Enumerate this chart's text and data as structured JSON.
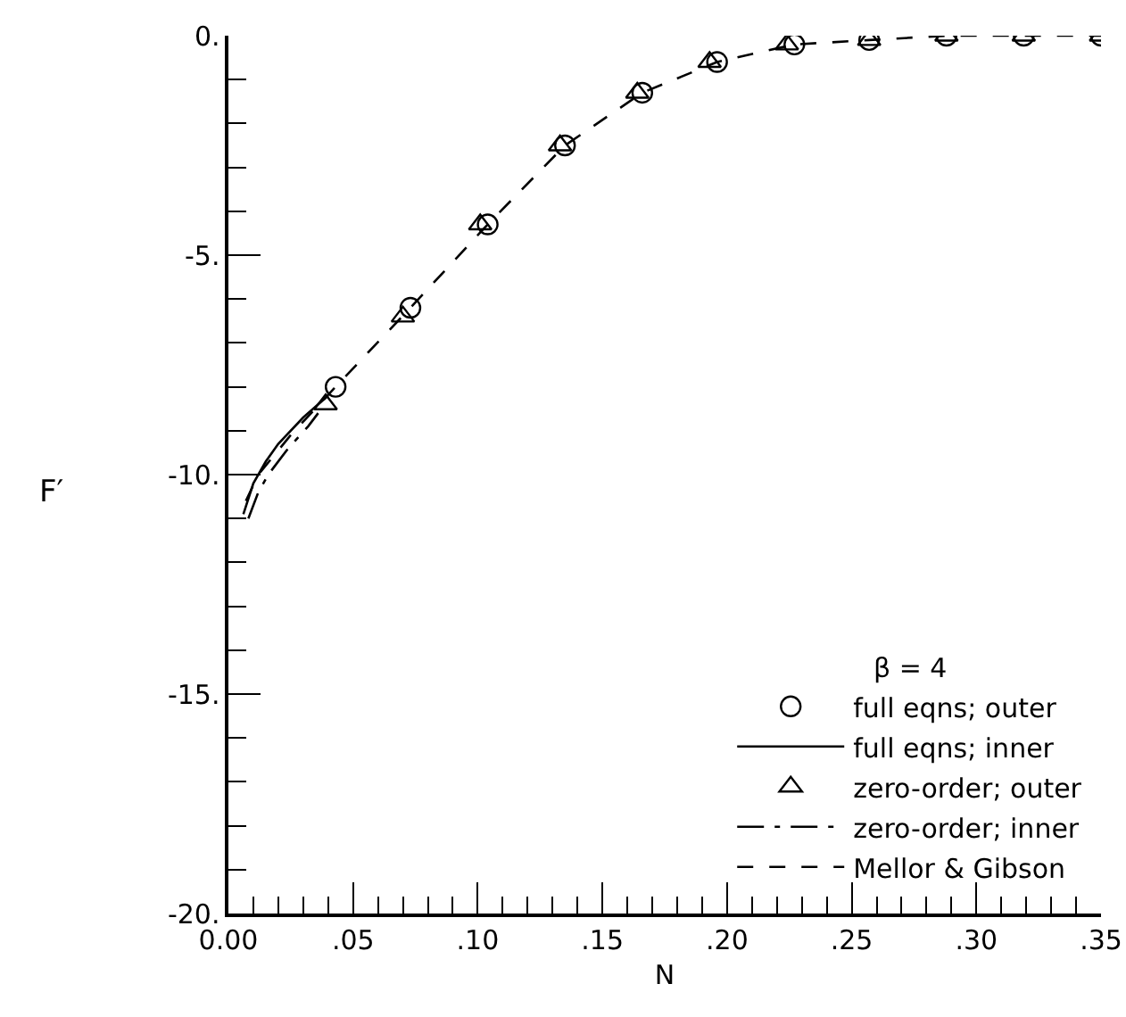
{
  "chart_data": {
    "type": "line",
    "xlabel": "N",
    "ylabel": "F′",
    "legend_title": "β = 4",
    "legend": "bottom right",
    "grid": false,
    "xlim": [
      0,
      0.35
    ],
    "ylim": [
      -20,
      0
    ],
    "xticks": [
      {
        "value": 0,
        "label": "0.00"
      },
      {
        "value": 0.01,
        "label": null
      },
      {
        "value": 0.02,
        "label": null
      },
      {
        "value": 0.03,
        "label": null
      },
      {
        "value": 0.04,
        "label": null
      },
      {
        "value": 0.05,
        "label": ".05"
      },
      {
        "value": 0.06,
        "label": null
      },
      {
        "value": 0.07,
        "label": null
      },
      {
        "value": 0.08,
        "label": null
      },
      {
        "value": 0.09,
        "label": null
      },
      {
        "value": 0.1,
        "label": ".10"
      },
      {
        "value": 0.11,
        "label": null
      },
      {
        "value": 0.12,
        "label": null
      },
      {
        "value": 0.13,
        "label": null
      },
      {
        "value": 0.14,
        "label": null
      },
      {
        "value": 0.15,
        "label": ".15"
      },
      {
        "value": 0.16,
        "label": null
      },
      {
        "value": 0.17,
        "label": null
      },
      {
        "value": 0.18,
        "label": null
      },
      {
        "value": 0.19,
        "label": null
      },
      {
        "value": 0.2,
        "label": ".20"
      },
      {
        "value": 0.21,
        "label": null
      },
      {
        "value": 0.22,
        "label": null
      },
      {
        "value": 0.23,
        "label": null
      },
      {
        "value": 0.24,
        "label": null
      },
      {
        "value": 0.25,
        "label": ".25"
      },
      {
        "value": 0.26,
        "label": null
      },
      {
        "value": 0.27,
        "label": null
      },
      {
        "value": 0.28,
        "label": null
      },
      {
        "value": 0.29,
        "label": null
      },
      {
        "value": 0.3,
        "label": ".30"
      },
      {
        "value": 0.31,
        "label": null
      },
      {
        "value": 0.32,
        "label": null
      },
      {
        "value": 0.33,
        "label": null
      },
      {
        "value": 0.34,
        "label": null
      },
      {
        "value": 0.35,
        "label": ".35"
      }
    ],
    "yticks": [
      {
        "value": -20,
        "label": "-20."
      },
      {
        "value": -19,
        "label": null
      },
      {
        "value": -18,
        "label": null
      },
      {
        "value": -17,
        "label": null
      },
      {
        "value": -16,
        "label": null
      },
      {
        "value": -15,
        "label": "-15."
      },
      {
        "value": -14,
        "label": null
      },
      {
        "value": -13,
        "label": null
      },
      {
        "value": -12,
        "label": null
      },
      {
        "value": -11,
        "label": null
      },
      {
        "value": -10,
        "label": "-10."
      },
      {
        "value": -9,
        "label": null
      },
      {
        "value": -8,
        "label": null
      },
      {
        "value": -7,
        "label": null
      },
      {
        "value": -6,
        "label": null
      },
      {
        "value": -5,
        "label": "-5."
      },
      {
        "value": -4,
        "label": null
      },
      {
        "value": -3,
        "label": null
      },
      {
        "value": -2,
        "label": null
      },
      {
        "value": -1,
        "label": null
      },
      {
        "value": 0,
        "label": "0."
      }
    ],
    "series": [
      {
        "name": "full eqns; outer",
        "type": "scatter",
        "marker": "circle",
        "color": "#000000",
        "x": [
          0.043,
          0.073,
          0.104,
          0.135,
          0.166,
          0.196,
          0.227,
          0.257,
          0.288,
          0.319,
          0.35
        ],
        "values": [
          -8.0,
          -6.2,
          -4.3,
          -2.5,
          -1.3,
          -0.6,
          -0.2,
          -0.1,
          0,
          0,
          0
        ]
      },
      {
        "name": "full eqns; inner",
        "line_style": "solid",
        "color": "#000000",
        "x": [
          0.006,
          0.01,
          0.015,
          0.02,
          0.03,
          0.04
        ],
        "values": [
          -10.9,
          -10.2,
          -9.7,
          -9.3,
          -8.7,
          -8.2
        ]
      },
      {
        "name": "zero-order; outer",
        "type": "scatter",
        "marker": "triangle",
        "color": "#000000",
        "x": [
          0.039,
          0.07,
          0.101,
          0.133,
          0.164,
          0.193,
          0.224,
          0.257,
          0.288,
          0.319,
          0.35
        ],
        "values": [
          -8.4,
          -6.4,
          -4.3,
          -2.5,
          -1.3,
          -0.6,
          -0.2,
          -0.1,
          0,
          0,
          0
        ]
      },
      {
        "name": "zero-order; inner",
        "line_style": "dashdot",
        "color": "#000000",
        "x": [
          0.008,
          0.012,
          0.016,
          0.024,
          0.032,
          0.036
        ],
        "values": [
          -11,
          -10.4,
          -10,
          -9.4,
          -8.9,
          -8.6
        ]
      },
      {
        "name": "Mellor & Gibson",
        "line_style": "dashed",
        "color": "#000000",
        "x": [
          0.007,
          0.012,
          0.025,
          0.043,
          0.073,
          0.104,
          0.135,
          0.166,
          0.196,
          0.227,
          0.257,
          0.288,
          0.35
        ],
        "values": [
          -10.6,
          -10,
          -9.1,
          -8.0,
          -6.2,
          -4.3,
          -2.5,
          -1.3,
          -0.6,
          -0.2,
          -0.1,
          0,
          0
        ]
      }
    ]
  }
}
